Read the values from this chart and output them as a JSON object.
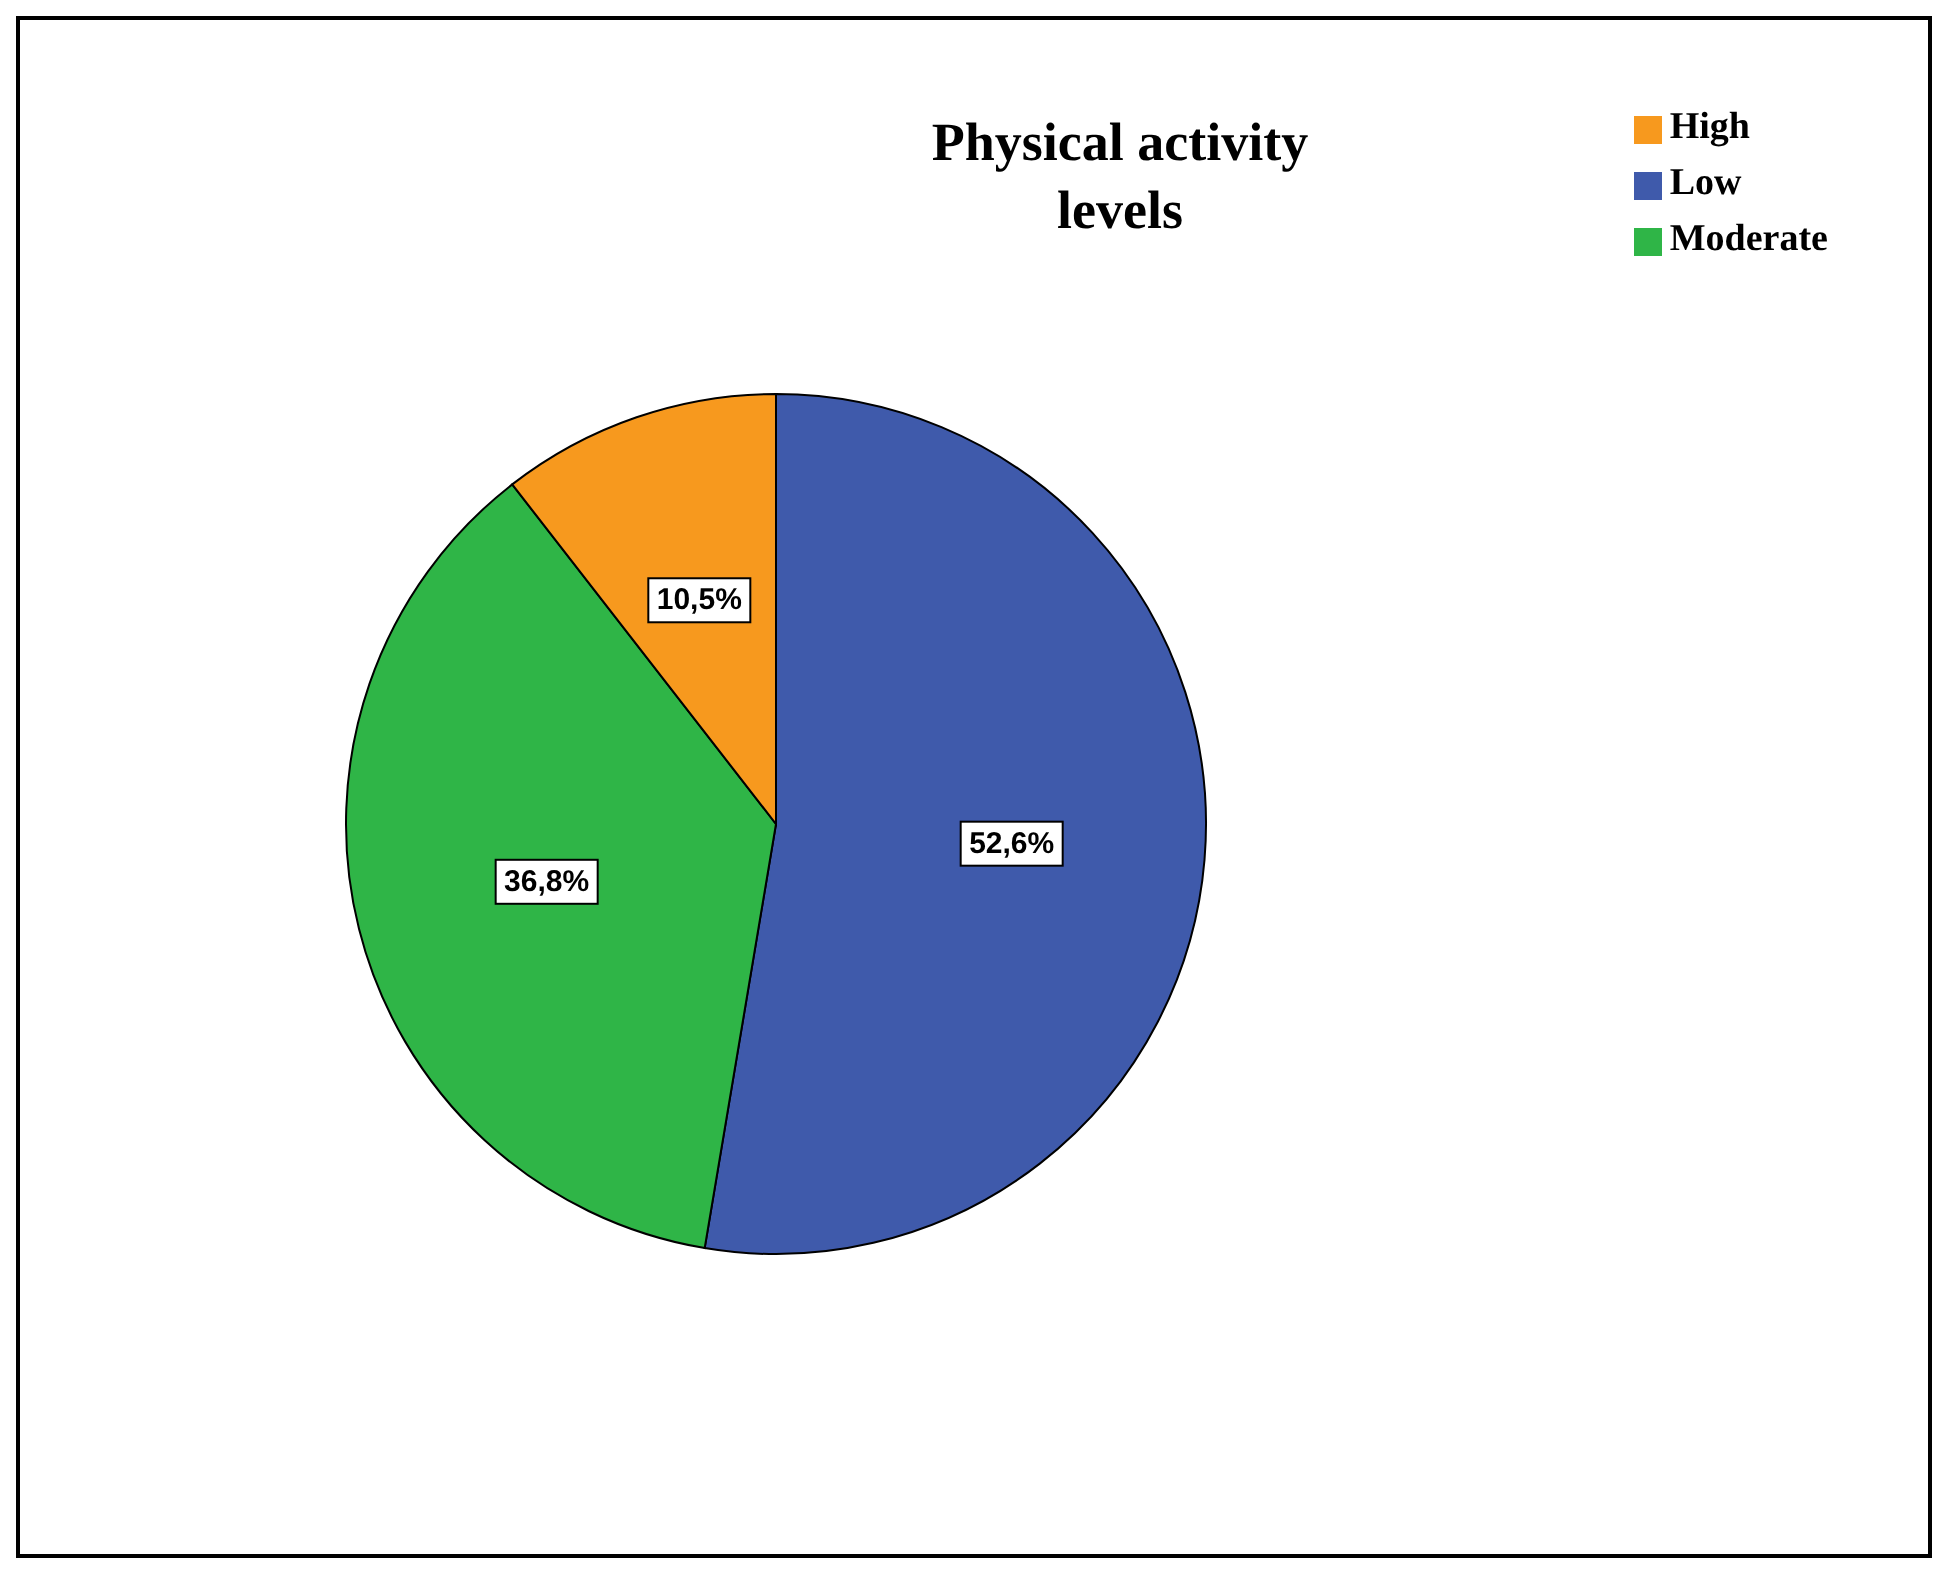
{
  "chart_data": {
    "type": "pie",
    "title": "Physical activity levels",
    "categories": [
      "Low",
      "Moderate",
      "High"
    ],
    "values": [
      52.6,
      36.8,
      10.5
    ],
    "colors": [
      "#3f5aab",
      "#2fb547",
      "#f7991e"
    ],
    "value_labels": [
      "52,6%",
      "36,8%",
      "10,5%"
    ],
    "legend": "top right"
  }
}
